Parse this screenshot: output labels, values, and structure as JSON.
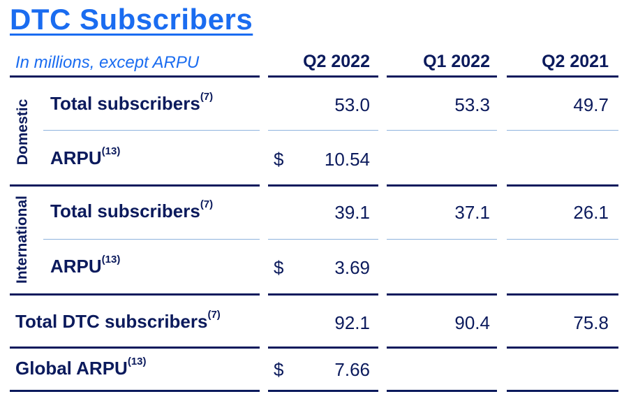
{
  "title": "DTC Subscribers",
  "subtitle": "In millions, except ARPU",
  "columns": [
    "Q2 2022",
    "Q1 2022",
    "Q2 2021"
  ],
  "sections": {
    "domestic": "Domestic",
    "international": "International"
  },
  "rows": [
    {
      "label": "Total subscribers",
      "note": "(7)",
      "values": [
        "53.0",
        "53.3",
        "49.7"
      ]
    },
    {
      "label": "ARPU",
      "note": "(13)",
      "currency": "$",
      "values": [
        "10.54",
        "",
        ""
      ]
    },
    {
      "label": "Total subscribers",
      "note": "(7)",
      "values": [
        "39.1",
        "37.1",
        "26.1"
      ]
    },
    {
      "label": "ARPU",
      "note": "(13)",
      "currency": "$",
      "values": [
        "3.69",
        "",
        ""
      ]
    },
    {
      "label": "Total DTC subscribers",
      "note": "(7)",
      "values": [
        "92.1",
        "90.4",
        "75.8"
      ]
    },
    {
      "label": "Global ARPU",
      "note": "(13)",
      "currency": "$",
      "values": [
        "7.66",
        "",
        ""
      ]
    }
  ],
  "colors": {
    "title": "#1a6cf0",
    "text": "#0b1a5c",
    "rule": "#0b1a5c",
    "thin_rule": "#8fb3de"
  }
}
